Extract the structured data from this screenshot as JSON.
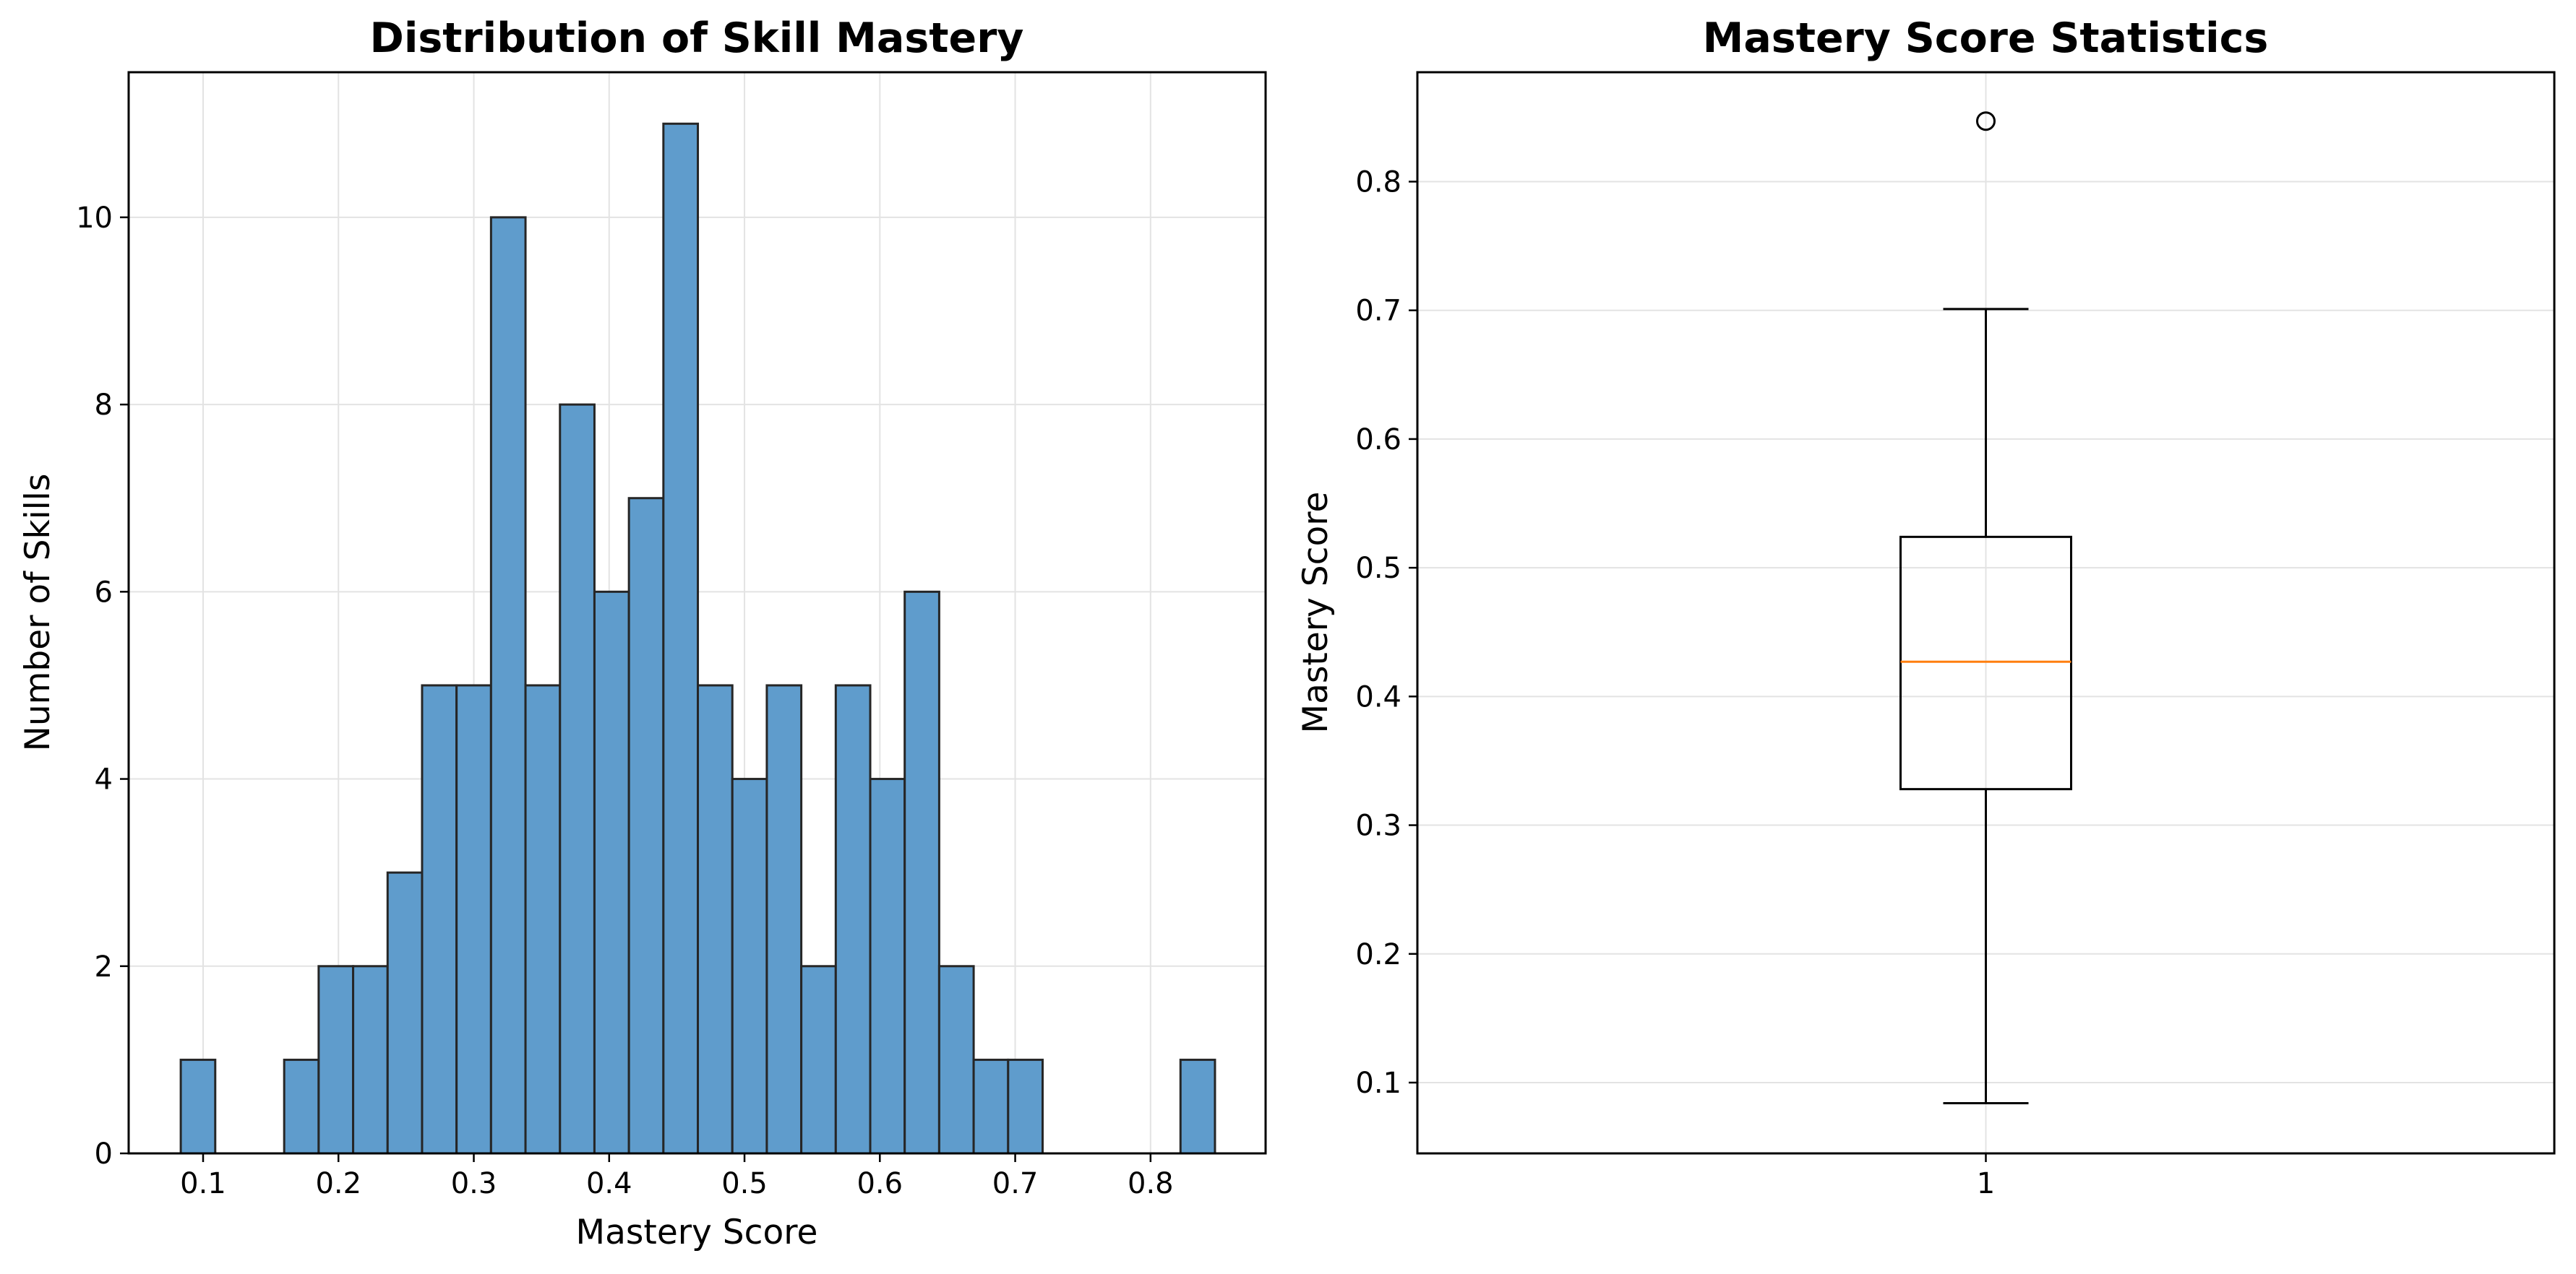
{
  "chart_data": [
    {
      "type": "histogram",
      "title": "Distribution of Skill Mastery",
      "xlabel": "Mastery Score",
      "ylabel": "Number of Skills",
      "xlim": [
        0.045,
        0.885
      ],
      "ylim": [
        0,
        11.55
      ],
      "grid": true,
      "bar_color": "#5f9ccc",
      "edge_color": "#262626",
      "xticks": [
        {
          "value": 0.1,
          "label": "0.1"
        },
        {
          "value": 0.2,
          "label": "0.2"
        },
        {
          "value": 0.3,
          "label": "0.3"
        },
        {
          "value": 0.4,
          "label": "0.4"
        },
        {
          "value": 0.5,
          "label": "0.5"
        },
        {
          "value": 0.6,
          "label": "0.6"
        },
        {
          "value": 0.7,
          "label": "0.7"
        },
        {
          "value": 0.8,
          "label": "0.8"
        }
      ],
      "yticks": [
        {
          "value": 0,
          "label": "0"
        },
        {
          "value": 2,
          "label": "2"
        },
        {
          "value": 4,
          "label": "4"
        },
        {
          "value": 6,
          "label": "6"
        },
        {
          "value": 8,
          "label": "8"
        },
        {
          "value": 10,
          "label": "10"
        }
      ],
      "bin_start": 0.0835,
      "bin_width": 0.02547,
      "counts": [
        1,
        0,
        0,
        1,
        2,
        2,
        3,
        5,
        5,
        10,
        5,
        8,
        6,
        7,
        11,
        5,
        4,
        5,
        2,
        5,
        4,
        6,
        2,
        1,
        1,
        0,
        0,
        0,
        0,
        1
      ]
    },
    {
      "type": "box",
      "title": "Mastery Score Statistics",
      "xlabel": "",
      "ylabel": "Mastery Score",
      "ylim": [
        0.045,
        0.885
      ],
      "grid": true,
      "median_color": "#ff7f0e",
      "categories": [
        "1"
      ],
      "stats": {
        "whisker_low": 0.084,
        "q1": 0.328,
        "median": 0.427,
        "q3": 0.524,
        "whisker_high": 0.701,
        "outliers": [
          0.847
        ]
      },
      "yticks": [
        {
          "value": 0.1,
          "label": "0.1"
        },
        {
          "value": 0.2,
          "label": "0.2"
        },
        {
          "value": 0.3,
          "label": "0.3"
        },
        {
          "value": 0.4,
          "label": "0.4"
        },
        {
          "value": 0.5,
          "label": "0.5"
        },
        {
          "value": 0.6,
          "label": "0.6"
        },
        {
          "value": 0.7,
          "label": "0.7"
        },
        {
          "value": 0.8,
          "label": "0.8"
        }
      ]
    }
  ]
}
